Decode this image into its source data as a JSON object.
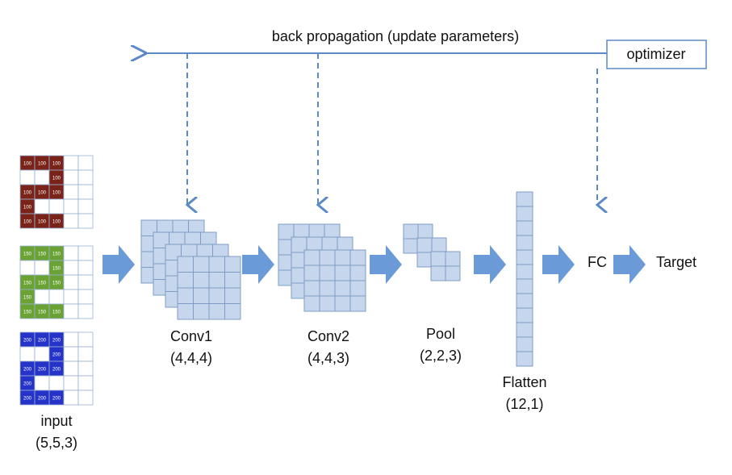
{
  "backprop_label": "back propagation (update parameters)",
  "optimizer": "optimizer",
  "input": {
    "label": "input",
    "shape": "(5,5,3)",
    "channels": [
      {
        "color": "#7a2318",
        "cells": [
          [
            100,
            100,
            100,
            null,
            null
          ],
          [
            null,
            null,
            100,
            null,
            null
          ],
          [
            100,
            100,
            100,
            null,
            null
          ],
          [
            100,
            null,
            null,
            null,
            null
          ],
          [
            100,
            100,
            100,
            null,
            null
          ]
        ]
      },
      {
        "color": "#6aa333",
        "cells": [
          [
            150,
            150,
            150,
            null,
            null
          ],
          [
            null,
            null,
            150,
            null,
            null
          ],
          [
            150,
            150,
            150,
            null,
            null
          ],
          [
            150,
            null,
            null,
            null,
            null
          ],
          [
            150,
            150,
            150,
            null,
            null
          ]
        ]
      },
      {
        "color": "#2533c8",
        "cells": [
          [
            200,
            200,
            200,
            null,
            null
          ],
          [
            null,
            null,
            200,
            null,
            null
          ],
          [
            200,
            200,
            200,
            null,
            null
          ],
          [
            200,
            null,
            null,
            null,
            null
          ],
          [
            200,
            200,
            200,
            null,
            null
          ]
        ]
      }
    ]
  },
  "layers": [
    {
      "label": "Conv1",
      "shape": "(4,4,4)"
    },
    {
      "label": "Conv2",
      "shape": "(4,4,3)"
    },
    {
      "label": "Pool",
      "shape": "(2,2,3)"
    },
    {
      "label": "Flatten",
      "shape": "(12,1)"
    }
  ],
  "fc": "FC",
  "target": "Target"
}
